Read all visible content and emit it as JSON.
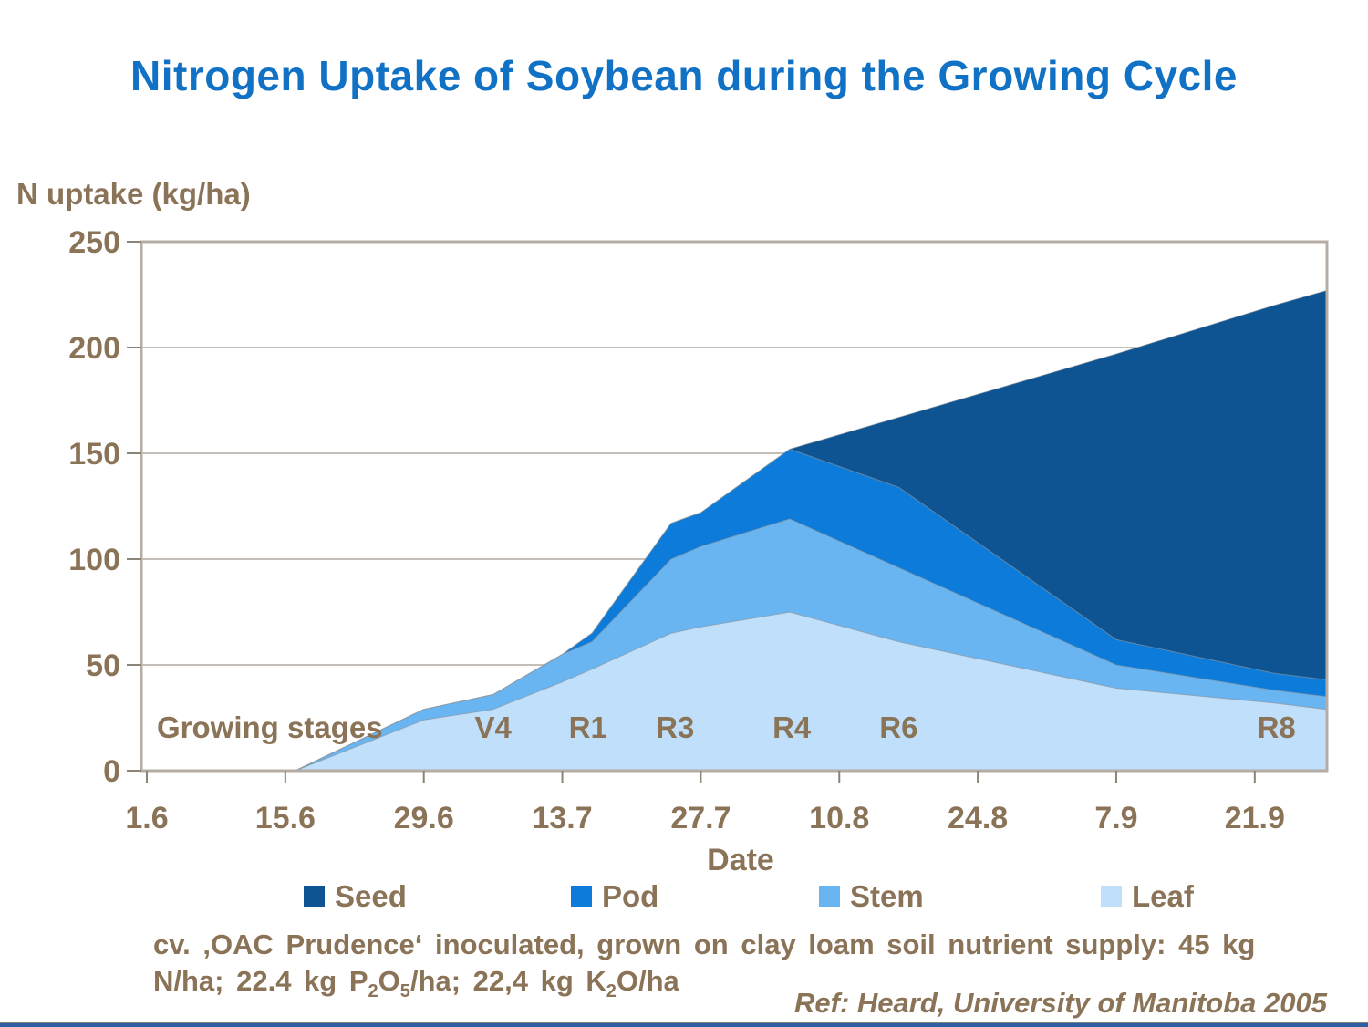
{
  "title": "Nitrogen Uptake of Soybean during the Growing Cycle",
  "y_axis": {
    "title": "N uptake (kg/ha)",
    "tick_labels": [
      "0",
      "50",
      "100",
      "150",
      "200",
      "250"
    ],
    "min": 0,
    "max": 250,
    "step": 50
  },
  "x_axis": {
    "title": "Date",
    "tick_labels": [
      "1.6",
      "15.6",
      "29.6",
      "13.7",
      "27.7",
      "10.8",
      "24.8",
      "7.9",
      "21.9"
    ],
    "tick_days": [
      0,
      14,
      28,
      42,
      56,
      70,
      84,
      98,
      112
    ]
  },
  "annotations": {
    "stages_label": "Growing stages",
    "stages": [
      {
        "label": "V4",
        "day": 35
      },
      {
        "label": "R1",
        "day": 44.6
      },
      {
        "label": "R3",
        "day": 53.4
      },
      {
        "label": "R4",
        "day": 65.2
      },
      {
        "label": "R6",
        "day": 76
      },
      {
        "label": "R8",
        "day": 114.2
      }
    ]
  },
  "legend": [
    {
      "label": "Seed",
      "color": "#0E5492"
    },
    {
      "label": "Pod",
      "color": "#0C7BD9"
    },
    {
      "label": "Stem",
      "color": "#69B5F1"
    },
    {
      "label": "Leaf",
      "color": "#BFDFFB"
    }
  ],
  "chart_data": {
    "type": "area",
    "stacked": true,
    "title": "Nitrogen Uptake of Soybean during the Growing Cycle",
    "xlabel": "Date",
    "ylabel": "N uptake (kg/ha)",
    "x_unit": "days since June 1 (tick 1.6)",
    "x": [
      0,
      15,
      28,
      35,
      42,
      45,
      53,
      56,
      65,
      76,
      98,
      114,
      119.3
    ],
    "series": [
      {
        "name": "Leaf",
        "color": "#BFDFFB",
        "values": [
          0,
          0,
          24,
          29,
          42,
          48,
          65,
          68,
          75,
          61,
          39,
          32,
          29
        ]
      },
      {
        "name": "Stem",
        "color": "#69B5F1",
        "values": [
          0,
          0,
          5,
          7,
          13,
          13,
          35,
          38,
          44,
          35,
          11,
          6,
          6
        ]
      },
      {
        "name": "Pod",
        "color": "#0C7BD9",
        "values": [
          0,
          0,
          0,
          0,
          0,
          4,
          17,
          16,
          33,
          38,
          12,
          8,
          8
        ]
      },
      {
        "name": "Seed",
        "color": "#0E5492",
        "values": [
          0,
          0,
          0,
          0,
          0,
          0,
          0,
          0,
          0,
          33,
          135,
          174,
          184
        ]
      }
    ],
    "stack_totals": [
      0,
      0,
      29,
      36,
      55,
      65,
      117,
      122,
      152,
      167,
      197,
      220,
      227
    ],
    "ylim": [
      0,
      250
    ],
    "grid": "horizontal",
    "legend_position": "bottom"
  },
  "caption": {
    "line1": "cv. ‚OAC Prudence‘ inoculated, grown on clay loam soil nutrient supply: 45 kg",
    "line2_segments": [
      {
        "text": "N/ha; 22.4 kg P"
      },
      {
        "text": "2",
        "sub": true
      },
      {
        "text": "O"
      },
      {
        "text": "5",
        "sub": true
      },
      {
        "text": "/ha; 22,4 kg K"
      },
      {
        "text": "2",
        "sub": true
      },
      {
        "text": "O/ha"
      }
    ]
  },
  "ref_text": "Ref: Heard, University of Manitoba 2005",
  "colors": {
    "title_blue": "#1171C4",
    "text_brown": "#8A7357",
    "plot_border": "#B5ACA3",
    "gridline": "#AFA8A1",
    "tick": "#8B8378",
    "area_edge": "#8A949C",
    "bottom_line": "#7F7F7F",
    "bottom_bar": "#2E5FA3",
    "background": "#FFFFFF"
  }
}
